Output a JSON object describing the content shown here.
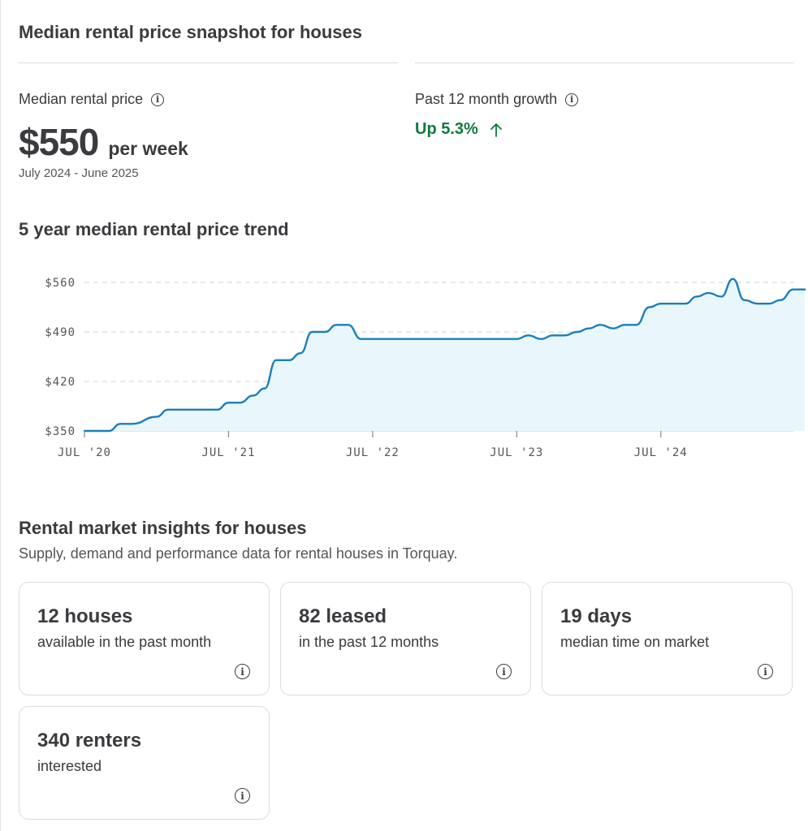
{
  "header": {
    "title": "Median rental price snapshot for houses"
  },
  "median": {
    "label": "Median rental price",
    "value": "$550",
    "unit": "per week",
    "period": "July 2024 - June 2025"
  },
  "growth": {
    "label": "Past 12 month growth",
    "value": "Up 5.3%",
    "color": "#0e7a3e",
    "icon": "arrow-up-icon"
  },
  "trend": {
    "title": "5 year median rental price trend"
  },
  "chart_data": {
    "type": "area",
    "title": "5 year median rental price trend",
    "xlabel": "",
    "ylabel": "",
    "x_ticks": [
      "JUL '20",
      "JUL '21",
      "JUL '22",
      "JUL '23",
      "JUL '24"
    ],
    "y_ticks": [
      "$350",
      "$420",
      "$490",
      "$560"
    ],
    "ylim": [
      350,
      560
    ],
    "grid": "horizontal dashed",
    "line_color": "#1a7fbd",
    "fill_color": "#e9f7fc",
    "series": [
      {
        "x": [
          2020.5,
          2020.67,
          2020.75,
          2020.83,
          2021.0,
          2021.08,
          2021.17,
          2021.25,
          2021.42,
          2021.5,
          2021.58,
          2021.67,
          2021.75,
          2021.83,
          2021.92,
          2022.0,
          2022.08,
          2022.17,
          2022.25,
          2022.33,
          2022.42,
          2022.5,
          2022.58,
          2022.67,
          2022.75,
          2022.83,
          2023.0,
          2023.25,
          2023.5,
          2023.58,
          2023.67,
          2023.75,
          2023.83,
          2023.92,
          2024.0,
          2024.08,
          2024.17,
          2024.25,
          2024.33,
          2024.42,
          2024.5,
          2024.58,
          2024.67,
          2024.75,
          2024.83,
          2024.92,
          2025.0,
          2025.08,
          2025.17,
          2025.25,
          2025.33,
          2025.42,
          2025.5
        ],
        "values": [
          350,
          350,
          360,
          360,
          370,
          380,
          380,
          380,
          380,
          390,
          390,
          400,
          410,
          450,
          450,
          460,
          490,
          490,
          500,
          500,
          480,
          480,
          480,
          480,
          480,
          480,
          480,
          480,
          480,
          485,
          480,
          485,
          485,
          490,
          495,
          500,
          495,
          500,
          500,
          525,
          530,
          530,
          530,
          540,
          545,
          540,
          565,
          535,
          530,
          530,
          535,
          550,
          550
        ]
      }
    ]
  },
  "insights": {
    "title": "Rental market insights for houses",
    "subtitle": "Supply, demand and performance data for rental houses in Torquay.",
    "cards": [
      {
        "value": "12 houses",
        "desc": "available in the past month"
      },
      {
        "value": "82 leased",
        "desc": "in the past 12 months"
      },
      {
        "value": "19 days",
        "desc": "median time on market"
      },
      {
        "value": "340 renters",
        "desc": "interested"
      }
    ]
  }
}
